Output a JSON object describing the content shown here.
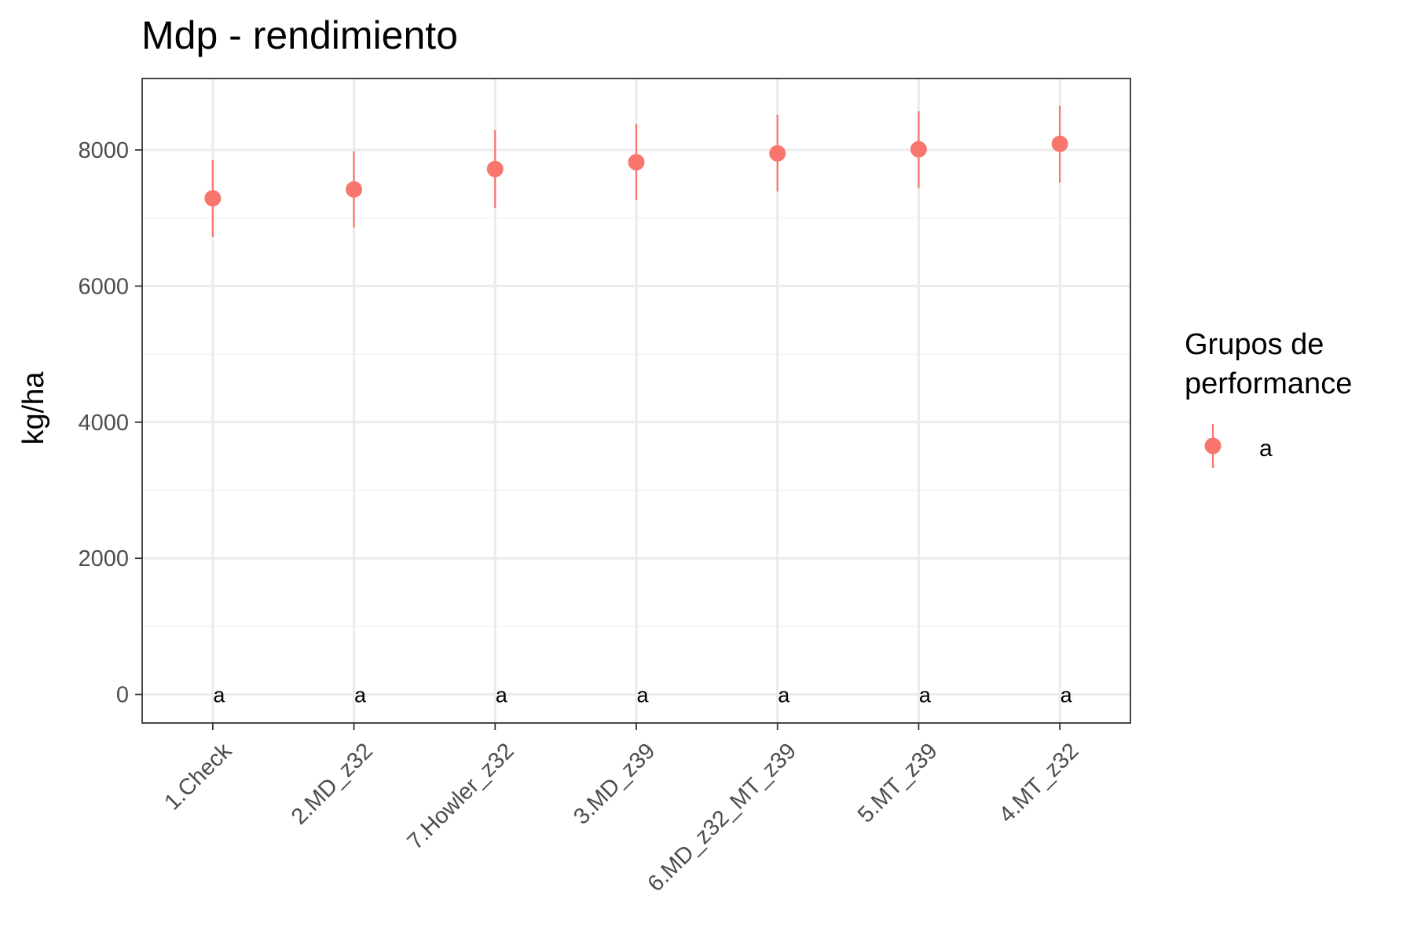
{
  "chart_data": {
    "type": "scatter",
    "title": "Mdp - rendimiento",
    "xlabel": "",
    "ylabel": "kg/ha",
    "ylim": [
      -420,
      9050
    ],
    "y_ticks": [
      0,
      2000,
      4000,
      6000,
      8000
    ],
    "y_tick_labels": [
      "0",
      "2000",
      "4000",
      "6000",
      "8000"
    ],
    "grid": true,
    "colors": {
      "point": "#f8766d",
      "grid_major": "#ebebeb",
      "grid_minor": "#f4f4f4",
      "border": "#333333"
    },
    "categories": [
      "1.Check",
      "2.MD_z32",
      "7.Howler_z32",
      "3.MD_z39",
      "6.MD_z32_MT_z39",
      "5.MT_z39",
      "4.MT_z32"
    ],
    "means": [
      7290,
      7420,
      7720,
      7820,
      7950,
      8010,
      8090
    ],
    "lower": [
      6720,
      6860,
      7150,
      7260,
      7390,
      7440,
      7520
    ],
    "upper": [
      7850,
      7980,
      8290,
      8380,
      8520,
      8570,
      8650
    ],
    "groups": [
      "a",
      "a",
      "a",
      "a",
      "a",
      "a",
      "a"
    ],
    "group_label_y": 0,
    "legend": {
      "title_line1": "Grupos de",
      "title_line2": "performance",
      "entries": [
        {
          "label": "a",
          "color": "#f8766d"
        }
      ],
      "position": "right"
    }
  }
}
